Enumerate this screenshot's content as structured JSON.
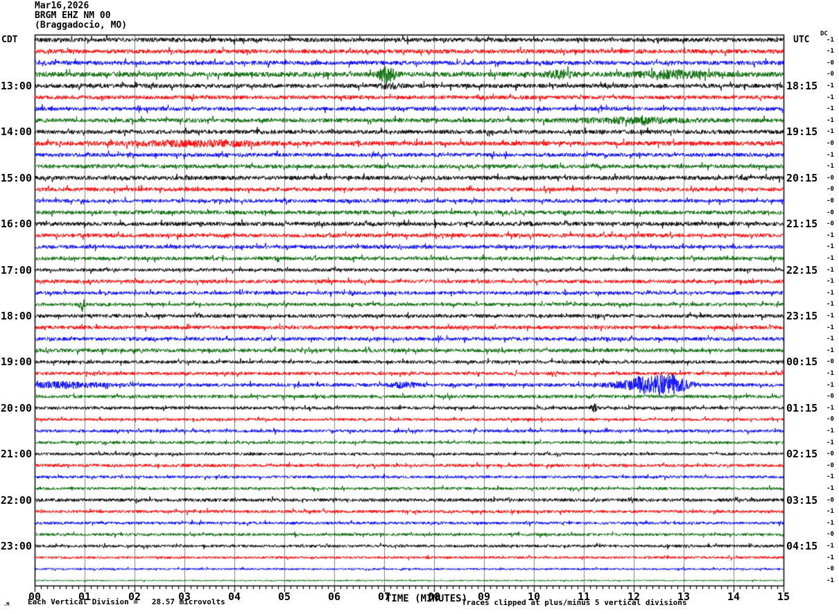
{
  "header": {
    "date": "Mar16,2026",
    "station": "BRGM EHZ NM 00",
    "location": "(Braggadocio, MO)"
  },
  "axes": {
    "left_label": "CDT",
    "right_label": "UTC",
    "dc_label": "DC",
    "x_axis_title": "TIME (MINUTES)",
    "x_tick_labels": [
      "00",
      "01",
      "02",
      "03",
      "04",
      "05",
      "06",
      "07",
      "08",
      "09",
      "10",
      "11",
      "12",
      "13",
      "14",
      "15"
    ],
    "left_times": [
      {
        "row": 4,
        "label": "13:00"
      },
      {
        "row": 8,
        "label": "14:00"
      },
      {
        "row": 12,
        "label": "15:00"
      },
      {
        "row": 16,
        "label": "16:00"
      },
      {
        "row": 20,
        "label": "17:00"
      },
      {
        "row": 24,
        "label": "18:00"
      },
      {
        "row": 28,
        "label": "19:00"
      },
      {
        "row": 32,
        "label": "20:00"
      },
      {
        "row": 36,
        "label": "21:00"
      },
      {
        "row": 40,
        "label": "22:00"
      },
      {
        "row": 44,
        "label": "23:00"
      }
    ],
    "right_times": [
      {
        "row": 4,
        "label": "18:15"
      },
      {
        "row": 8,
        "label": "19:15"
      },
      {
        "row": 12,
        "label": "20:15"
      },
      {
        "row": 16,
        "label": "21:15"
      },
      {
        "row": 20,
        "label": "22:15"
      },
      {
        "row": 24,
        "label": "23:15"
      },
      {
        "row": 28,
        "label": "00:15"
      },
      {
        "row": 32,
        "label": "01:15"
      },
      {
        "row": 36,
        "label": "02:15"
      },
      {
        "row": 40,
        "label": "03:15"
      },
      {
        "row": 44,
        "label": "04:15"
      }
    ]
  },
  "footer": {
    "mark": ".M",
    "scale_label": "Each Vertical Division =",
    "scale_value": "28.57 microvolts",
    "clip_note": "Traces clipped at plus/minus 5 vertical divisions"
  },
  "chart_data": {
    "type": "line",
    "subtype": "helicorder-seismogram",
    "title": "BRGM EHZ NM 00 (Braggadocio, MO) Mar16,2026",
    "xlabel": "TIME (MINUTES)",
    "x_range_minutes": [
      0,
      15
    ],
    "minutes_per_line": 15,
    "lines": 48,
    "minor_subdivisions_per_minute": 8,
    "grid_on": true,
    "grid_color": "#808080",
    "border_color": "#000000",
    "trace_color_cycle": [
      "#000000",
      "#ff0000",
      "#0000ff",
      "#006600"
    ],
    "clip_divisions": 5,
    "microvolts_per_division": 28.57,
    "dc_values": [
      "-1",
      "-1",
      "-0",
      "-0",
      "-1",
      "-1",
      "-1",
      "-1",
      "-1",
      "-0",
      "-1",
      "-1",
      "-0",
      "-0",
      "-0",
      "-0",
      "-0",
      "-1",
      "-1",
      "-1",
      "-1",
      "-1",
      "-1",
      "-1",
      "-1",
      "-1",
      "-1",
      "-1",
      "-0",
      "-1",
      "-1",
      "-0",
      "-1",
      "-0",
      "-1",
      "-1",
      "-0",
      "-0",
      "-1",
      "-1",
      "-0",
      "-1",
      "-1",
      "-0",
      "-1",
      "-1",
      "-0",
      "-1"
    ],
    "traces": [
      {
        "amp": 3.0,
        "events": []
      },
      {
        "amp": 3.0,
        "events": []
      },
      {
        "amp": 3.0,
        "events": []
      },
      {
        "amp": 3.6,
        "events": [
          {
            "m": 7.05,
            "w": 0.12,
            "a": 10
          },
          {
            "m": 10.55,
            "w": 0.2,
            "a": 4
          },
          {
            "m": 12.8,
            "w": 0.5,
            "a": 4
          }
        ]
      },
      {
        "amp": 3.0,
        "events": [
          {
            "m": 7.1,
            "w": 0.15,
            "a": 2.5
          }
        ]
      },
      {
        "amp": 2.8,
        "events": []
      },
      {
        "amp": 2.8,
        "events": []
      },
      {
        "amp": 3.0,
        "events": [
          {
            "m": 12.0,
            "w": 0.7,
            "a": 3
          }
        ]
      },
      {
        "amp": 3.0,
        "events": []
      },
      {
        "amp": 3.2,
        "events": [
          {
            "m": 3.3,
            "w": 0.9,
            "a": 3
          }
        ]
      },
      {
        "amp": 2.8,
        "events": []
      },
      {
        "amp": 2.8,
        "events": []
      },
      {
        "amp": 3.0,
        "events": []
      },
      {
        "amp": 2.8,
        "events": []
      },
      {
        "amp": 2.6,
        "events": []
      },
      {
        "amp": 2.8,
        "events": []
      },
      {
        "amp": 2.9,
        "events": []
      },
      {
        "amp": 2.8,
        "events": []
      },
      {
        "amp": 2.7,
        "events": []
      },
      {
        "amp": 2.6,
        "events": []
      },
      {
        "amp": 2.4,
        "events": []
      },
      {
        "amp": 2.6,
        "events": []
      },
      {
        "amp": 2.5,
        "events": []
      },
      {
        "amp": 2.4,
        "events": [
          {
            "m": 0.95,
            "w": 0.04,
            "a": 8
          }
        ]
      },
      {
        "amp": 2.6,
        "events": []
      },
      {
        "amp": 2.7,
        "events": []
      },
      {
        "amp": 2.6,
        "events": []
      },
      {
        "amp": 2.6,
        "events": []
      },
      {
        "amp": 2.4,
        "events": []
      },
      {
        "amp": 2.4,
        "events": []
      },
      {
        "amp": 2.5,
        "events": [
          {
            "m": 12.65,
            "w": 0.28,
            "a": 15
          },
          {
            "m": 12.15,
            "w": 0.12,
            "a": 6
          },
          {
            "m": 0.6,
            "w": 0.5,
            "a": 3.5
          },
          {
            "m": 11.8,
            "w": 0.25,
            "a": 4
          },
          {
            "m": 7.4,
            "w": 0.2,
            "a": 3
          }
        ]
      },
      {
        "amp": 2.4,
        "events": []
      },
      {
        "amp": 2.2,
        "events": [
          {
            "m": 11.2,
            "w": 0.04,
            "a": 5
          }
        ]
      },
      {
        "amp": 2.0,
        "events": []
      },
      {
        "amp": 2.2,
        "events": []
      },
      {
        "amp": 2.0,
        "events": []
      },
      {
        "amp": 2.0,
        "events": []
      },
      {
        "amp": 2.2,
        "events": []
      },
      {
        "amp": 2.0,
        "events": []
      },
      {
        "amp": 2.0,
        "events": []
      },
      {
        "amp": 2.4,
        "events": []
      },
      {
        "amp": 2.2,
        "events": []
      },
      {
        "amp": 2.0,
        "events": []
      },
      {
        "amp": 2.0,
        "events": []
      },
      {
        "amp": 2.0,
        "events": []
      },
      {
        "amp": 1.8,
        "events": []
      },
      {
        "amp": 1.4,
        "events": []
      },
      {
        "amp": 0.9,
        "events": []
      }
    ]
  }
}
